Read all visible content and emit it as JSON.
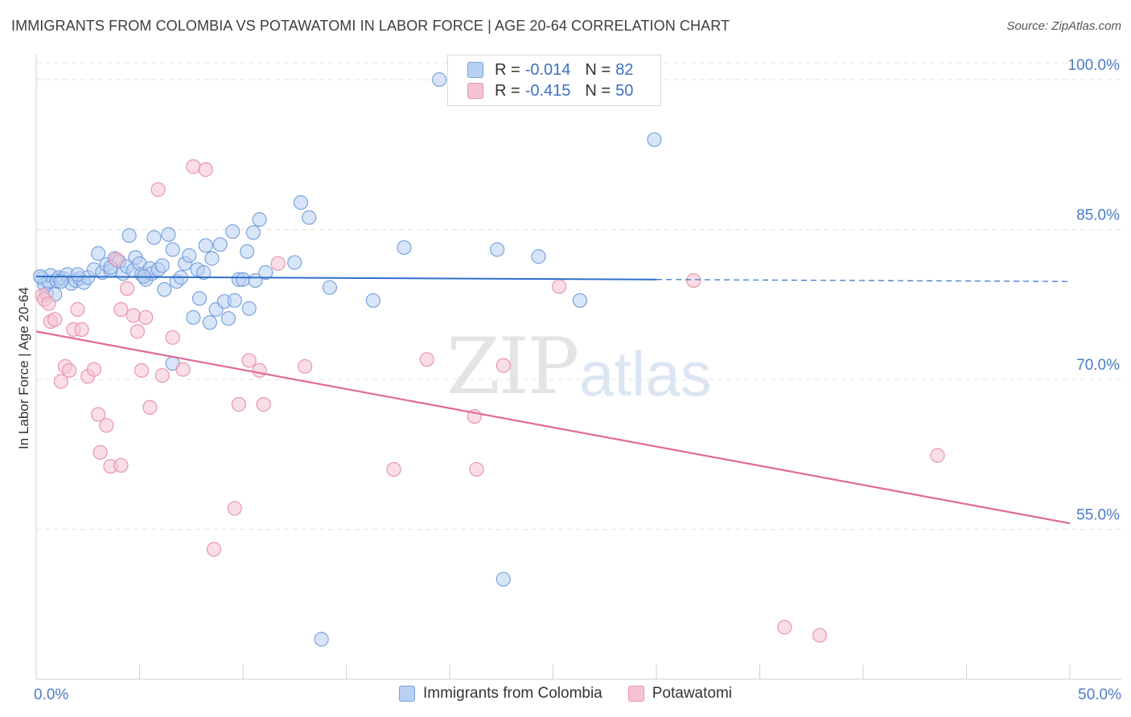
{
  "title": "IMMIGRANTS FROM COLOMBIA VS POTAWATOMI IN LABOR FORCE | AGE 20-64 CORRELATION CHART",
  "source": "Source: ZipAtlas.com",
  "watermark": {
    "zip": "ZIP",
    "atlas": "atlas"
  },
  "colors": {
    "blue_fill": "#b8d0f2",
    "blue_stroke": "#7aa3dc",
    "blue_line": "#2f6fca",
    "pink_fill": "#f6c3d3",
    "pink_stroke": "#e895b0",
    "pink_line": "#e06a95",
    "grid": "#e3e3e3",
    "tick_text": "#4a7cc9"
  },
  "legend": {
    "rows": [
      {
        "r_label": "R =",
        "r_value": "-0.014",
        "n_label": "N =",
        "n_value": "82"
      },
      {
        "r_label": "R =",
        "r_value": "-0.415",
        "n_label": "N =",
        "n_value": "50"
      }
    ]
  },
  "bottom_legend": {
    "items": [
      {
        "label": "Immigrants from Colombia"
      },
      {
        "label": "Potawatomi"
      }
    ]
  },
  "chart_data": {
    "type": "scatter",
    "title": "IMMIGRANTS FROM COLOMBIA VS POTAWATOMI IN LABOR FORCE | AGE 20-64 CORRELATION CHART",
    "xlabel": "",
    "ylabel": "In Labor Force | Age 20-64",
    "xlim": [
      0,
      50
    ],
    "ylim": [
      40,
      102.5
    ],
    "x_tick_labels": [
      "0.0%",
      "50.0%"
    ],
    "y_ticks": [
      55,
      70,
      85,
      100
    ],
    "y_tick_labels": [
      "55.0%",
      "70.0%",
      "85.0%",
      "100.0%"
    ],
    "grid": true,
    "legend_position": "top-center",
    "series": [
      {
        "name": "Immigrants from Colombia",
        "color": "#b8d0f2",
        "trend": {
          "x": [
            0,
            30,
            50
          ],
          "y": [
            80.3,
            80.0,
            79.8
          ],
          "solid_until": 30
        },
        "points": [
          [
            0.3,
            80.1
          ],
          [
            0.4,
            79.5
          ],
          [
            0.5,
            78.6
          ],
          [
            0.6,
            79.8
          ],
          [
            0.7,
            80.4
          ],
          [
            0.9,
            78.5
          ],
          [
            1.0,
            79.9
          ],
          [
            1.1,
            80.2
          ],
          [
            1.3,
            80.1
          ],
          [
            1.5,
            80.5
          ],
          [
            1.7,
            79.6
          ],
          [
            1.9,
            79.9
          ],
          [
            2.1,
            80.1
          ],
          [
            2.3,
            79.7
          ],
          [
            2.5,
            80.2
          ],
          [
            2.8,
            81.0
          ],
          [
            3.0,
            82.6
          ],
          [
            3.2,
            80.7
          ],
          [
            3.4,
            81.5
          ],
          [
            3.6,
            80.9
          ],
          [
            3.8,
            82.1
          ],
          [
            4.0,
            81.8
          ],
          [
            4.2,
            80.6
          ],
          [
            4.4,
            81.3
          ],
          [
            4.5,
            84.4
          ],
          [
            4.7,
            80.9
          ],
          [
            4.8,
            82.2
          ],
          [
            5.0,
            81.6
          ],
          [
            5.1,
            80.5
          ],
          [
            5.3,
            80.0
          ],
          [
            5.5,
            81.1
          ],
          [
            5.6,
            80.6
          ],
          [
            5.7,
            84.2
          ],
          [
            5.9,
            81.0
          ],
          [
            6.1,
            81.4
          ],
          [
            6.2,
            79.0
          ],
          [
            6.4,
            84.5
          ],
          [
            6.6,
            71.6
          ],
          [
            6.8,
            79.8
          ],
          [
            6.6,
            83.0
          ],
          [
            7.2,
            81.6
          ],
          [
            7.4,
            82.4
          ],
          [
            7.6,
            76.2
          ],
          [
            7.8,
            81.0
          ],
          [
            7.9,
            78.1
          ],
          [
            8.1,
            80.7
          ],
          [
            8.2,
            83.4
          ],
          [
            8.4,
            75.7
          ],
          [
            8.5,
            82.1
          ],
          [
            8.7,
            77.0
          ],
          [
            8.9,
            83.5
          ],
          [
            9.1,
            77.8
          ],
          [
            9.3,
            76.1
          ],
          [
            9.5,
            84.8
          ],
          [
            9.6,
            77.9
          ],
          [
            9.8,
            80.0
          ],
          [
            10.0,
            80.0
          ],
          [
            10.2,
            82.8
          ],
          [
            10.3,
            77.1
          ],
          [
            10.5,
            84.7
          ],
          [
            10.6,
            79.9
          ],
          [
            10.8,
            86.0
          ],
          [
            11.1,
            80.7
          ],
          [
            12.5,
            81.7
          ],
          [
            12.8,
            87.7
          ],
          [
            13.2,
            86.2
          ],
          [
            13.8,
            44.0
          ],
          [
            14.2,
            79.2
          ],
          [
            16.3,
            77.9
          ],
          [
            17.8,
            83.2
          ],
          [
            19.5,
            100.0
          ],
          [
            22.3,
            83.0
          ],
          [
            22.6,
            50.0
          ],
          [
            24.3,
            82.3
          ],
          [
            26.3,
            77.9
          ],
          [
            29.9,
            94.0
          ],
          [
            0.2,
            80.3
          ],
          [
            1.2,
            79.8
          ],
          [
            2.0,
            80.5
          ],
          [
            3.6,
            81.2
          ],
          [
            5.2,
            80.3
          ],
          [
            7.0,
            80.2
          ]
        ]
      },
      {
        "name": "Potawatomi",
        "color": "#f6c3d3",
        "trend": {
          "x": [
            0,
            50
          ],
          "y": [
            74.8,
            55.6
          ]
        },
        "points": [
          [
            0.3,
            78.4
          ],
          [
            0.4,
            78.0
          ],
          [
            0.6,
            77.6
          ],
          [
            0.7,
            75.8
          ],
          [
            0.9,
            76.0
          ],
          [
            1.2,
            69.8
          ],
          [
            1.4,
            71.3
          ],
          [
            1.6,
            70.9
          ],
          [
            1.8,
            75.0
          ],
          [
            2.0,
            77.0
          ],
          [
            2.2,
            75.0
          ],
          [
            2.5,
            70.3
          ],
          [
            2.8,
            71.0
          ],
          [
            3.0,
            66.5
          ],
          [
            3.1,
            62.7
          ],
          [
            3.4,
            65.4
          ],
          [
            3.6,
            61.3
          ],
          [
            3.9,
            82.0
          ],
          [
            4.1,
            61.4
          ],
          [
            4.1,
            77.0
          ],
          [
            4.4,
            79.1
          ],
          [
            4.7,
            76.4
          ],
          [
            4.9,
            74.8
          ],
          [
            5.1,
            70.9
          ],
          [
            5.3,
            76.2
          ],
          [
            5.5,
            67.2
          ],
          [
            5.9,
            89.0
          ],
          [
            6.1,
            70.4
          ],
          [
            6.6,
            74.2
          ],
          [
            7.1,
            71.0
          ],
          [
            7.6,
            91.3
          ],
          [
            8.2,
            91.0
          ],
          [
            8.6,
            53.0
          ],
          [
            9.6,
            57.1
          ],
          [
            9.8,
            67.5
          ],
          [
            10.3,
            71.9
          ],
          [
            10.8,
            70.9
          ],
          [
            11.0,
            67.5
          ],
          [
            11.7,
            81.6
          ],
          [
            13.0,
            71.3
          ],
          [
            17.3,
            61.0
          ],
          [
            18.9,
            72.0
          ],
          [
            21.2,
            66.3
          ],
          [
            21.3,
            61.0
          ],
          [
            22.6,
            71.4
          ],
          [
            25.3,
            79.3
          ],
          [
            31.8,
            79.9
          ],
          [
            36.2,
            45.2
          ],
          [
            37.9,
            44.4
          ],
          [
            43.6,
            62.4
          ]
        ]
      }
    ]
  }
}
